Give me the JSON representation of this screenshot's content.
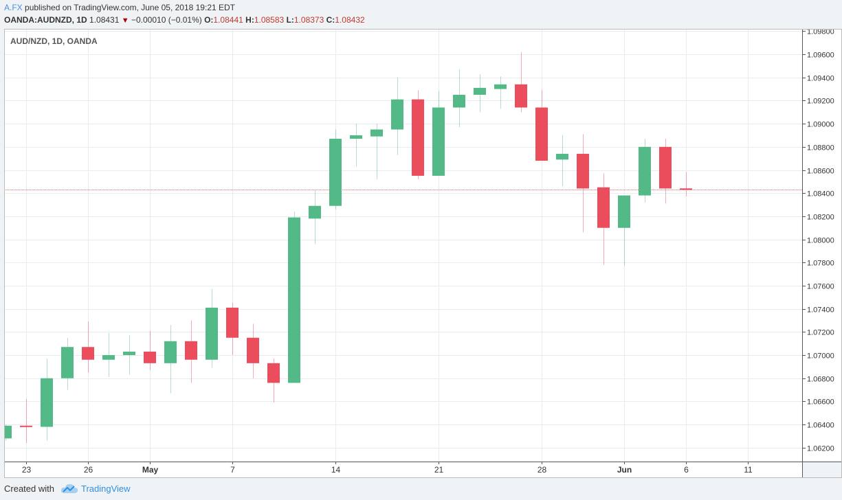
{
  "header": {
    "author": "A.FX",
    "published_text": "published on TradingView.com, June 05, 2018 19:21 EDT",
    "symbol": "OANDA:AUDNZD, 1D",
    "last": "1.08431",
    "change": "−0.00010 (−0.01%)",
    "open_label": "O:",
    "open": "1.08441",
    "high_label": "H:",
    "high": "1.08583",
    "low_label": "L:",
    "low": "1.08373",
    "close_label": "C:",
    "close": "1.08432"
  },
  "footer": {
    "created_with": "Created with",
    "brand": "TradingView"
  },
  "colors": {
    "up": "#53b987",
    "down": "#eb4d5c",
    "grid": "#e8ecf0",
    "last_price_line": "#e06666"
  },
  "chart_data": {
    "type": "candlestick",
    "title": "AUD/NZD, 1D, OANDA",
    "y_range": [
      1.0608,
      1.0982
    ],
    "y_ticks": [
      "1.09800",
      "1.09600",
      "1.09400",
      "1.09200",
      "1.09000",
      "1.08800",
      "1.08600",
      "1.08400",
      "1.08200",
      "1.08000",
      "1.07800",
      "1.07600",
      "1.07400",
      "1.07200",
      "1.07000",
      "1.06800",
      "1.06600",
      "1.06400",
      "1.06200"
    ],
    "last_price": 1.08432,
    "x_labels": [
      {
        "label": "23",
        "index": 1,
        "bold": false
      },
      {
        "label": "26",
        "index": 4,
        "bold": false
      },
      {
        "label": "May",
        "index": 7,
        "bold": true
      },
      {
        "label": "7",
        "index": 11,
        "bold": false
      },
      {
        "label": "14",
        "index": 16,
        "bold": false
      },
      {
        "label": "21",
        "index": 21,
        "bold": false
      },
      {
        "label": "28",
        "index": 26,
        "bold": false
      },
      {
        "label": "Jun",
        "index": 30,
        "bold": true
      },
      {
        "label": "6",
        "index": 33,
        "bold": false
      },
      {
        "label": "11",
        "index": 36,
        "bold": false
      }
    ],
    "slots": 39,
    "candles": [
      {
        "i": 0,
        "o": 1.0628,
        "h": 1.064,
        "l": 1.0626,
        "c": 1.0639
      },
      {
        "i": 1,
        "o": 1.0639,
        "h": 1.0662,
        "l": 1.0624,
        "c": 1.0638
      },
      {
        "i": 2,
        "o": 1.0638,
        "h": 1.0697,
        "l": 1.0626,
        "c": 1.068
      },
      {
        "i": 3,
        "o": 1.068,
        "h": 1.0715,
        "l": 1.067,
        "c": 1.0707
      },
      {
        "i": 4,
        "o": 1.0707,
        "h": 1.0729,
        "l": 1.0685,
        "c": 1.0696
      },
      {
        "i": 5,
        "o": 1.0696,
        "h": 1.0719,
        "l": 1.0681,
        "c": 1.07
      },
      {
        "i": 6,
        "o": 1.07,
        "h": 1.0717,
        "l": 1.0683,
        "c": 1.0703
      },
      {
        "i": 7,
        "o": 1.0703,
        "h": 1.0721,
        "l": 1.0687,
        "c": 1.0693
      },
      {
        "i": 8,
        "o": 1.0693,
        "h": 1.0726,
        "l": 1.0667,
        "c": 1.0712
      },
      {
        "i": 9,
        "o": 1.0712,
        "h": 1.073,
        "l": 1.0676,
        "c": 1.0696
      },
      {
        "i": 10,
        "o": 1.0696,
        "h": 1.0757,
        "l": 1.0689,
        "c": 1.0741
      },
      {
        "i": 11,
        "o": 1.0741,
        "h": 1.0745,
        "l": 1.07,
        "c": 1.0715
      },
      {
        "i": 12,
        "o": 1.0715,
        "h": 1.0727,
        "l": 1.068,
        "c": 1.0693
      },
      {
        "i": 13,
        "o": 1.0693,
        "h": 1.0697,
        "l": 1.0659,
        "c": 1.0676
      },
      {
        "i": 14,
        "o": 1.0676,
        "h": 1.0824,
        "l": 1.0676,
        "c": 1.0819
      },
      {
        "i": 15,
        "o": 1.0818,
        "h": 1.0843,
        "l": 1.0796,
        "c": 1.0829
      },
      {
        "i": 16,
        "o": 1.0829,
        "h": 1.0895,
        "l": 1.0826,
        "c": 1.0887
      },
      {
        "i": 17,
        "o": 1.0887,
        "h": 1.09,
        "l": 1.0863,
        "c": 1.089
      },
      {
        "i": 18,
        "o": 1.0889,
        "h": 1.09,
        "l": 1.0852,
        "c": 1.0895
      },
      {
        "i": 19,
        "o": 1.0895,
        "h": 1.094,
        "l": 1.0873,
        "c": 1.0921
      },
      {
        "i": 20,
        "o": 1.0921,
        "h": 1.0929,
        "l": 1.0852,
        "c": 1.0855
      },
      {
        "i": 21,
        "o": 1.0855,
        "h": 1.0928,
        "l": 1.0855,
        "c": 1.0914
      },
      {
        "i": 22,
        "o": 1.0914,
        "h": 1.0947,
        "l": 1.0897,
        "c": 1.0925
      },
      {
        "i": 23,
        "o": 1.0925,
        "h": 1.0943,
        "l": 1.091,
        "c": 1.0931
      },
      {
        "i": 24,
        "o": 1.093,
        "h": 1.0941,
        "l": 1.0913,
        "c": 1.0934
      },
      {
        "i": 25,
        "o": 1.0934,
        "h": 1.0962,
        "l": 1.091,
        "c": 1.0914
      },
      {
        "i": 26,
        "o": 1.0914,
        "h": 1.0929,
        "l": 1.0868,
        "c": 1.0868
      },
      {
        "i": 27,
        "o": 1.0869,
        "h": 1.089,
        "l": 1.0846,
        "c": 1.0874
      },
      {
        "i": 28,
        "o": 1.0874,
        "h": 1.0891,
        "l": 1.0806,
        "c": 1.0844
      },
      {
        "i": 29,
        "o": 1.0845,
        "h": 1.0857,
        "l": 1.0778,
        "c": 1.081
      },
      {
        "i": 30,
        "o": 1.081,
        "h": 1.0838,
        "l": 1.0777,
        "c": 1.0838
      },
      {
        "i": 31,
        "o": 1.0838,
        "h": 1.0887,
        "l": 1.0832,
        "c": 1.088
      },
      {
        "i": 32,
        "o": 1.088,
        "h": 1.0887,
        "l": 1.0831,
        "c": 1.0844
      },
      {
        "i": 33,
        "o": 1.08441,
        "h": 1.08583,
        "l": 1.08373,
        "c": 1.08432
      }
    ]
  }
}
